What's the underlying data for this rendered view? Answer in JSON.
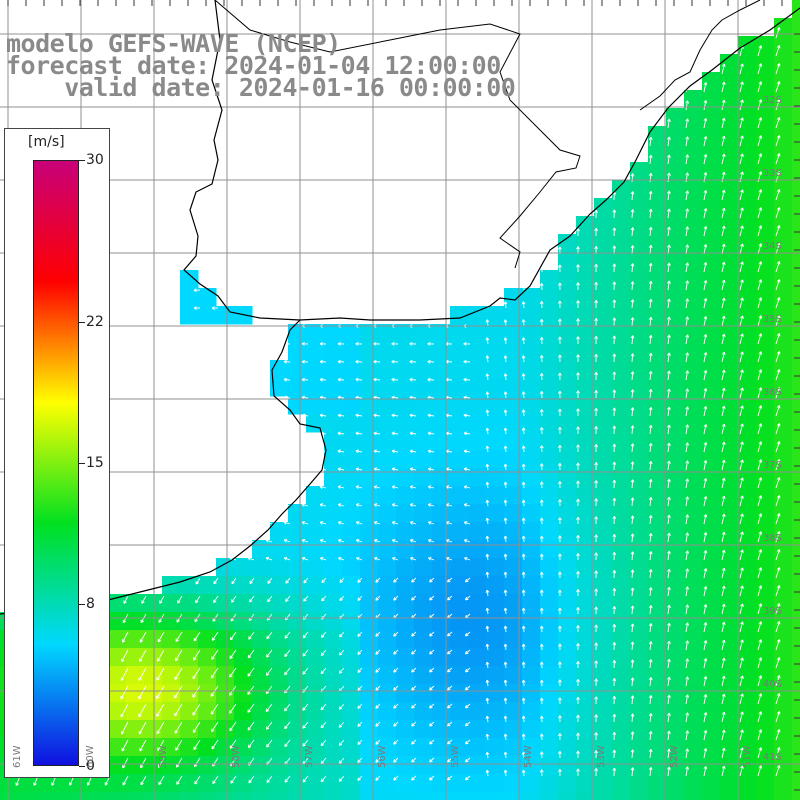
{
  "title": {
    "line1": "modelo GEFS-WAVE (NCEP)",
    "line2": "forecast date: 2024-01-04 12:00:00",
    "line3": "    valid date: 2024-01-16 00:00:00"
  },
  "colorbar": {
    "unit": "[m/s]",
    "min": 0,
    "max": 30,
    "ticks": [
      "30",
      "22",
      "15",
      "8",
      "0"
    ],
    "tick_values": [
      30,
      22,
      15,
      8,
      0
    ],
    "colors": [
      "#1010e0",
      "#00d8ff",
      "#00e020",
      "#ffff00",
      "#ff0000",
      "#c8007a"
    ]
  },
  "map": {
    "lat_labels": [
      "32S",
      "33S",
      "34S",
      "35S",
      "36S",
      "37S",
      "38S",
      "39S",
      "40S",
      "41S"
    ],
    "lon_labels": [
      "61W",
      "60W",
      "59W",
      "58W",
      "57W",
      "56W",
      "55W",
      "54W",
      "53W",
      "52W",
      "51W"
    ],
    "land_color": "#ffffff",
    "grid_color": "#909090",
    "coast_color": "#000000",
    "vector_color": "#ffffff"
  }
}
